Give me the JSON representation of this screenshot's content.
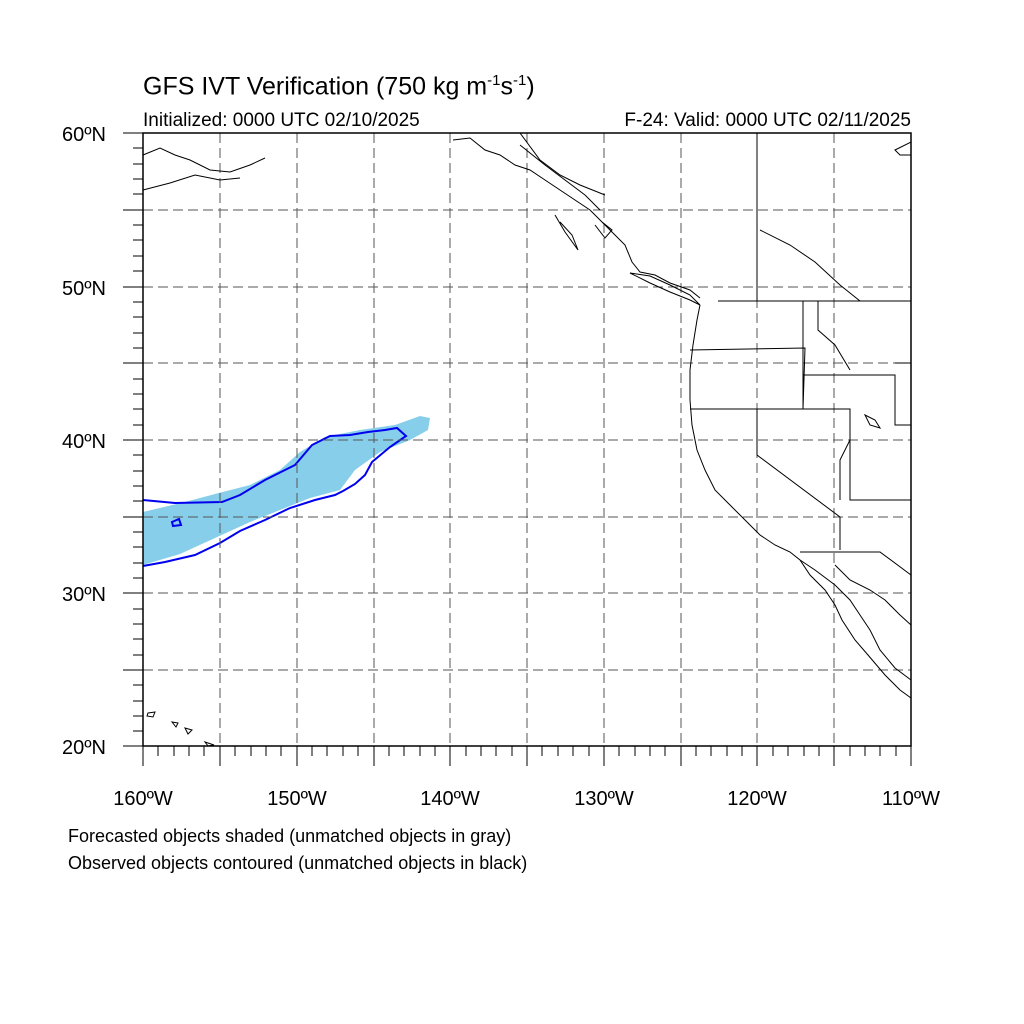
{
  "title": {
    "main": "GFS IVT Verification (750 kg m",
    "exp1": "-1",
    "mid": "s",
    "exp2": "-1",
    "end": ")"
  },
  "initialized": "Initialized: 0000 UTC 02/10/2025",
  "valid": "F-24: Valid: 0000 UTC 02/11/2025",
  "lat_labels": [
    "60ºN",
    "50ºN",
    "40ºN",
    "30ºN",
    "20ºN"
  ],
  "lon_labels": [
    "160ºW",
    "150ºW",
    "140ºW",
    "130ºW",
    "120ºW",
    "110ºW"
  ],
  "notes": {
    "line1": "Forecasted objects shaded (unmatched objects in gray)",
    "line2": "Observed objects contoured (unmatched objects in black)"
  },
  "colors": {
    "forecast_fill": "#87ceeb",
    "observed_contour": "#0000ee",
    "coastline": "#000000",
    "grid": "#555555"
  }
}
